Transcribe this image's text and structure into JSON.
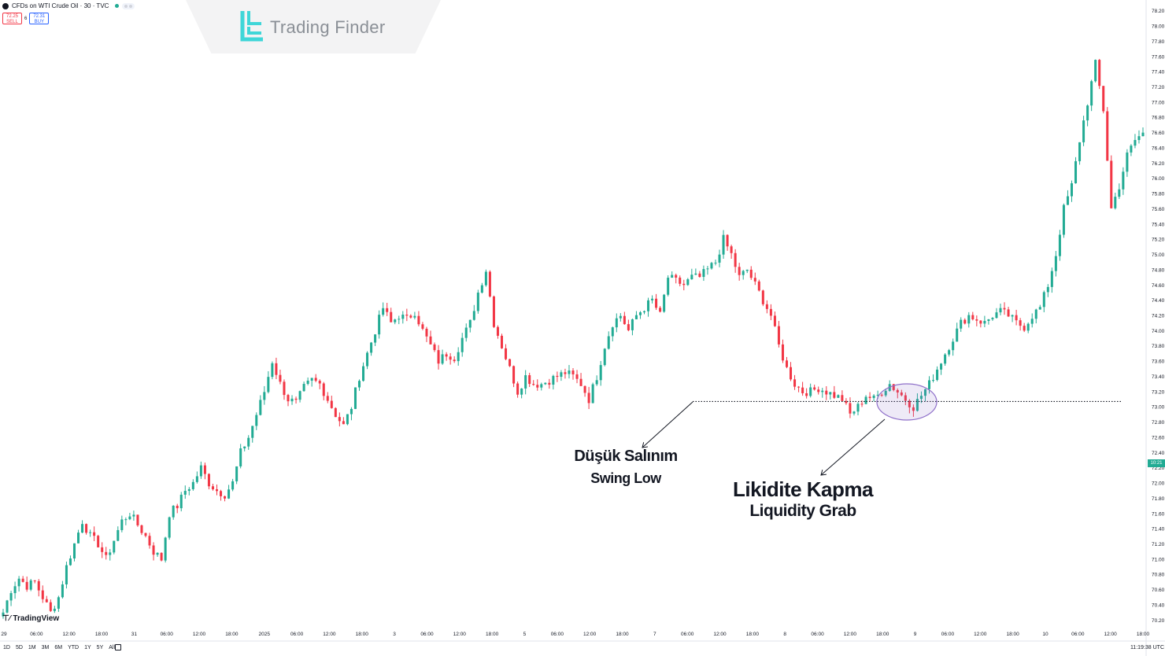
{
  "header": {
    "symbol_title": "CFDs on WTI Crude Oil · 30 · TVC",
    "sell_price": "72.25",
    "sell_label": "SELL",
    "spread": "6",
    "buy_price": "72.31",
    "buy_label": "BUY"
  },
  "logo": {
    "text": "Trading Finder"
  },
  "branding": {
    "tradingview": "TradingView"
  },
  "bottom_bar": {
    "ranges": [
      "1D",
      "5D",
      "1M",
      "3M",
      "6M",
      "YTD",
      "1Y",
      "5Y",
      "All"
    ],
    "clock": "11:19:38 UTC"
  },
  "current_price_tag": "10:21",
  "annotations": {
    "swing_low_tr": "Düşük Salınım",
    "swing_low_en": "Swing Low",
    "liquidity_tr": "Likidite Kapma",
    "liquidity_en": "Liquidity Grab"
  },
  "colors": {
    "up": "#22ab94",
    "down": "#f23645",
    "ellipse": "#8e6fc9"
  },
  "chart_data": {
    "type": "candlestick",
    "ylim": [
      70.1,
      78.3
    ],
    "y_ticks": [
      "78.20",
      "78.00",
      "77.80",
      "77.60",
      "77.40",
      "77.20",
      "77.00",
      "76.80",
      "76.60",
      "76.40",
      "76.20",
      "76.00",
      "75.80",
      "75.60",
      "75.40",
      "75.20",
      "75.00",
      "74.80",
      "74.60",
      "74.40",
      "74.20",
      "74.00",
      "73.80",
      "73.60",
      "73.40",
      "73.20",
      "73.00",
      "72.80",
      "72.60",
      "72.40",
      "72.20",
      "72.00",
      "71.80",
      "71.60",
      "71.40",
      "71.20",
      "71.00",
      "70.80",
      "70.60",
      "70.40",
      "70.20"
    ],
    "x_ticks": [
      "29",
      "06:00",
      "12:00",
      "18:00",
      "31",
      "06:00",
      "12:00",
      "18:00",
      "2025",
      "06:00",
      "12:00",
      "18:00",
      "3",
      "06:00",
      "12:00",
      "18:00",
      "5",
      "06:00",
      "12:00",
      "18:00",
      "7",
      "06:00",
      "12:00",
      "18:00",
      "8",
      "06:00",
      "12:00",
      "18:00",
      "9",
      "06:00",
      "12:00",
      "18:00",
      "10",
      "06:00",
      "12:00",
      "18:00"
    ],
    "swing_low_level": 73.07,
    "path_close": [
      70.3,
      70.6,
      70.75,
      70.65,
      70.7,
      70.5,
      70.3,
      70.5,
      70.9,
      71.2,
      71.5,
      71.3,
      71.2,
      71.0,
      71.25,
      71.5,
      71.6,
      71.45,
      71.3,
      71.1,
      71.0,
      71.6,
      71.7,
      71.9,
      72.0,
      72.2,
      72.0,
      71.9,
      71.85,
      72.0,
      72.4,
      72.6,
      72.9,
      73.2,
      73.6,
      73.3,
      73.1,
      73.05,
      73.25,
      73.35,
      73.3,
      73.1,
      72.9,
      72.75,
      73.0,
      73.4,
      73.7,
      74.0,
      74.3,
      74.1,
      74.2,
      74.15,
      74.25,
      74.0,
      73.8,
      73.6,
      73.7,
      73.65,
      73.9,
      74.1,
      74.5,
      74.8,
      74.1,
      73.8,
      73.5,
      73.2,
      73.4,
      73.3,
      73.3,
      73.35,
      73.4,
      73.45,
      73.4,
      73.3,
      73.1,
      73.4,
      73.8,
      74.1,
      74.2,
      74.0,
      74.2,
      74.3,
      74.4,
      74.2,
      74.7,
      74.65,
      74.6,
      74.7,
      74.7,
      74.8,
      74.9,
      75.2,
      75.0,
      74.7,
      74.8,
      74.6,
      74.4,
      74.2,
      73.8,
      73.5,
      73.3,
      73.2,
      73.2,
      73.25,
      73.2,
      73.15,
      73.1,
      72.9,
      73.0,
      73.15,
      73.1,
      73.2,
      73.3,
      73.2,
      73.1,
      73.0,
      73.15,
      73.3,
      73.5,
      73.7,
      73.9,
      74.1,
      74.2,
      74.15,
      74.1,
      74.2,
      74.25,
      74.2,
      74.1,
      74.05,
      74.2,
      74.3,
      74.6,
      75.0,
      75.6,
      75.9,
      76.5,
      77.0,
      77.5,
      76.9,
      75.6,
      75.9,
      76.3,
      76.5,
      76.6
    ]
  }
}
